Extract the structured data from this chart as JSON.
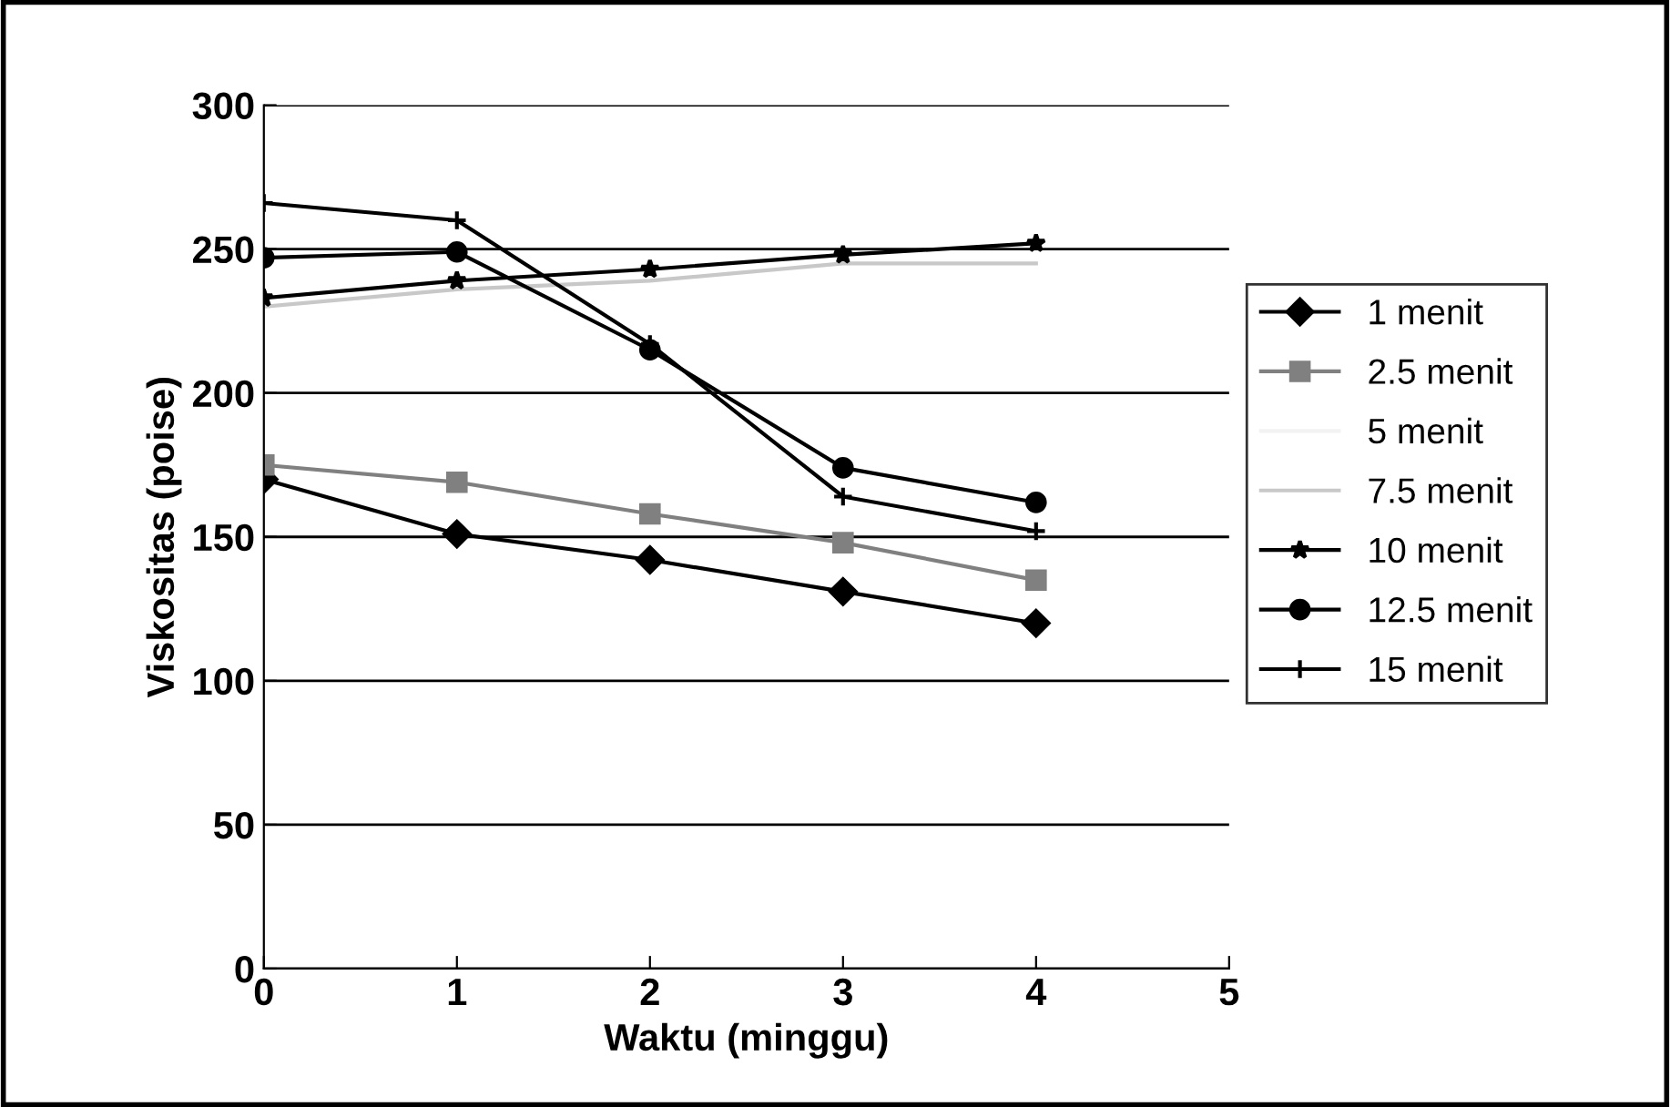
{
  "chart_data": {
    "type": "line",
    "xlabel": "Waktu (minggu)",
    "ylabel": "Viskositas (poise)",
    "x": [
      0,
      1,
      2,
      3,
      4
    ],
    "xlim": [
      0,
      5
    ],
    "xticks": [
      0,
      1,
      2,
      3,
      4,
      5
    ],
    "ylim": [
      0,
      300
    ],
    "yticks": [
      0,
      50,
      100,
      150,
      200,
      250,
      300
    ],
    "grid": "y",
    "legend": "right",
    "series": [
      {
        "name": "1 menit",
        "color": "#000000",
        "marker": "diamond",
        "values": [
          170,
          151,
          142,
          131,
          120
        ]
      },
      {
        "name": "2.5 menit",
        "color": "#808080",
        "marker": "square",
        "values": [
          175,
          169,
          158,
          148,
          135
        ]
      },
      {
        "name": "5 menit",
        "color": "#f2f2f2",
        "marker": "none",
        "values": [
          null,
          null,
          null,
          null,
          null
        ]
      },
      {
        "name": "7.5 menit",
        "color": "#c8c8c8",
        "marker": "none",
        "values": [
          230,
          236,
          239,
          245,
          245
        ]
      },
      {
        "name": "10 menit",
        "color": "#000000",
        "marker": "star",
        "values": [
          233,
          239,
          243,
          248,
          252
        ]
      },
      {
        "name": "12.5 menit",
        "color": "#000000",
        "marker": "circle",
        "values": [
          247,
          249,
          215,
          174,
          162
        ]
      },
      {
        "name": "15 menit",
        "color": "#000000",
        "marker": "cross",
        "values": [
          266,
          260,
          217,
          164,
          152
        ]
      }
    ]
  }
}
